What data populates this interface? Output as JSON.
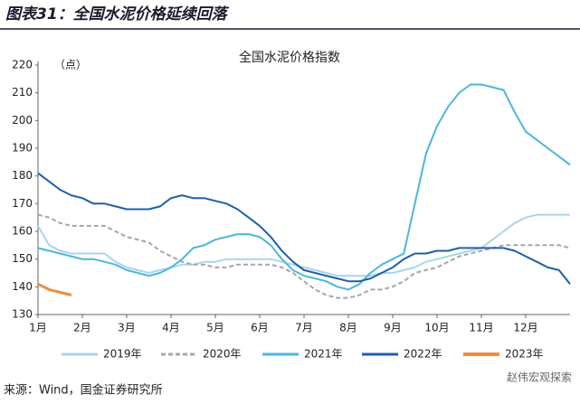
{
  "chart_data": {
    "type": "line",
    "figure_title": "图表31：全国水泥价格延续回落",
    "title": "全国水泥价格指数",
    "unit": "（点）",
    "source": "来源：Wind，国金证券研究所",
    "watermark": "赵伟宏观探索",
    "x": [
      1,
      1.25,
      1.5,
      1.75,
      2,
      2.25,
      2.5,
      2.75,
      3,
      3.25,
      3.5,
      3.75,
      4,
      4.25,
      4.5,
      4.75,
      5,
      5.25,
      5.5,
      5.75,
      6,
      6.25,
      6.5,
      6.75,
      7,
      7.25,
      7.5,
      7.75,
      8,
      8.25,
      8.5,
      8.75,
      9,
      9.25,
      9.5,
      9.75,
      10,
      10.25,
      10.5,
      10.75,
      11,
      11.25,
      11.5,
      11.75,
      12,
      12.25,
      12.5,
      12.75,
      13
    ],
    "xlim": [
      1,
      13
    ],
    "xticks": [
      {
        "value": 1,
        "label": "1月"
      },
      {
        "value": 2,
        "label": "2月"
      },
      {
        "value": 3,
        "label": "3月"
      },
      {
        "value": 4,
        "label": "4月"
      },
      {
        "value": 5,
        "label": "5月"
      },
      {
        "value": 6,
        "label": "6月"
      },
      {
        "value": 7,
        "label": "7月"
      },
      {
        "value": 8,
        "label": "8月"
      },
      {
        "value": 9,
        "label": "9月"
      },
      {
        "value": 10,
        "label": "10月"
      },
      {
        "value": 11,
        "label": "11月"
      },
      {
        "value": 12,
        "label": "12月"
      }
    ],
    "ylim": [
      130,
      220
    ],
    "yticks": [
      130,
      140,
      150,
      160,
      170,
      180,
      190,
      200,
      210,
      220
    ],
    "legend": "bottom",
    "series": [
      {
        "name": "2019年",
        "color": "#a9d5ef",
        "line_style": "solid",
        "values": [
          162,
          155,
          153,
          152,
          152,
          152,
          152,
          149,
          147,
          146,
          145,
          146,
          147,
          148,
          148,
          149,
          149,
          150,
          150,
          150,
          150,
          150,
          149,
          148,
          147,
          146,
          145,
          144,
          144,
          144,
          144,
          145,
          145,
          146,
          147,
          149,
          150,
          151,
          152,
          153,
          154,
          157,
          160,
          163,
          165,
          166,
          166,
          166,
          166
        ]
      },
      {
        "name": "2020年",
        "color": "#a6a6a6",
        "line_style": "dashed",
        "values": [
          166,
          165,
          163,
          162,
          162,
          162,
          162,
          160,
          158,
          157,
          156,
          153,
          151,
          149,
          148,
          148,
          147,
          147,
          148,
          148,
          148,
          148,
          147,
          145,
          142,
          139,
          137,
          136,
          136,
          137,
          139,
          139,
          140,
          142,
          145,
          146,
          147,
          149,
          151,
          152,
          153,
          154,
          155,
          155,
          155,
          155,
          155,
          155,
          154
        ]
      },
      {
        "name": "2021年",
        "color": "#4eb6dc",
        "line_style": "solid",
        "values": [
          154,
          153,
          152,
          151,
          150,
          150,
          149,
          148,
          146,
          145,
          144,
          145,
          147,
          150,
          154,
          155,
          157,
          158,
          159,
          159,
          158,
          155,
          150,
          146,
          144,
          143,
          142,
          140,
          139,
          141,
          145,
          148,
          150,
          152,
          170,
          188,
          198,
          205,
          210,
          213,
          213,
          212,
          211,
          203,
          196,
          193,
          190,
          187,
          184
        ]
      },
      {
        "name": "2022年",
        "color": "#1f5fa8",
        "line_style": "solid",
        "values": [
          181,
          178,
          175,
          173,
          172,
          170,
          170,
          169,
          168,
          168,
          168,
          169,
          172,
          173,
          172,
          172,
          171,
          170,
          168,
          165,
          162,
          158,
          153,
          149,
          146,
          145,
          144,
          143,
          142,
          142,
          143,
          145,
          147,
          150,
          152,
          152,
          153,
          153,
          154,
          154,
          154,
          154,
          154,
          153,
          151,
          149,
          147,
          146,
          141
        ]
      },
      {
        "name": "2023年",
        "color": "#f08c3c",
        "line_style": "solid",
        "values": [
          141,
          139,
          138,
          137,
          null,
          null,
          null,
          null,
          null,
          null,
          null,
          null,
          null,
          null,
          null,
          null,
          null,
          null,
          null,
          null,
          null,
          null,
          null,
          null,
          null,
          null,
          null,
          null,
          null,
          null,
          null,
          null,
          null,
          null,
          null,
          null,
          null,
          null,
          null,
          null,
          null,
          null,
          null,
          null,
          null,
          null,
          null,
          null,
          null
        ]
      }
    ]
  }
}
